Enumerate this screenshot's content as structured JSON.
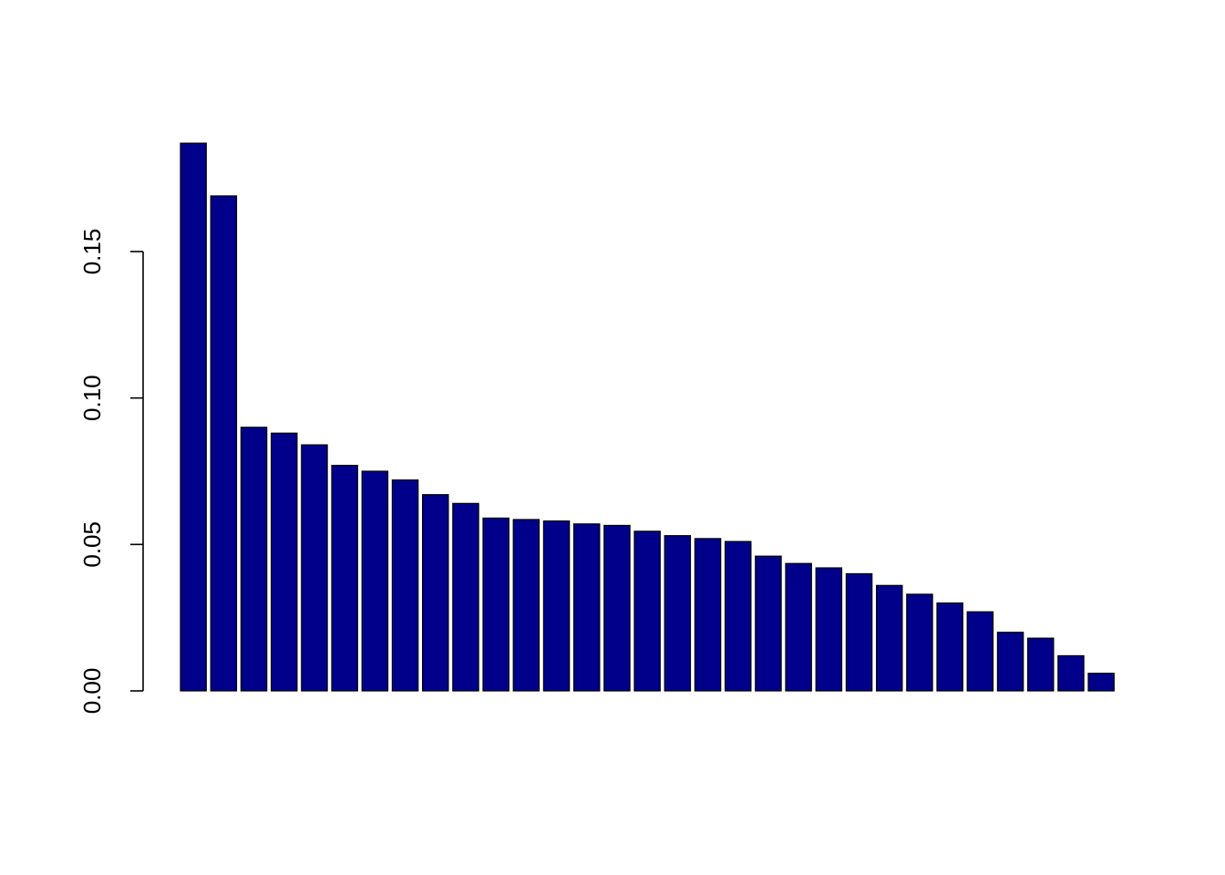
{
  "chart_data": {
    "type": "bar",
    "title": "",
    "xlabel": "",
    "ylabel": "",
    "bar_color": "#00008B",
    "grid": false,
    "ylim": [
      0,
      0.195
    ],
    "y_ticks": [
      0.0,
      0.05,
      0.1,
      0.15
    ],
    "y_tick_labels": [
      "0.00",
      "0.05",
      "0.10",
      "0.15"
    ],
    "values": [
      0.187,
      0.169,
      0.09,
      0.088,
      0.084,
      0.077,
      0.075,
      0.072,
      0.067,
      0.064,
      0.059,
      0.0585,
      0.058,
      0.057,
      0.0565,
      0.0545,
      0.053,
      0.052,
      0.051,
      0.046,
      0.0435,
      0.042,
      0.04,
      0.036,
      0.033,
      0.03,
      0.027,
      0.02,
      0.018,
      0.012,
      0.006
    ]
  }
}
